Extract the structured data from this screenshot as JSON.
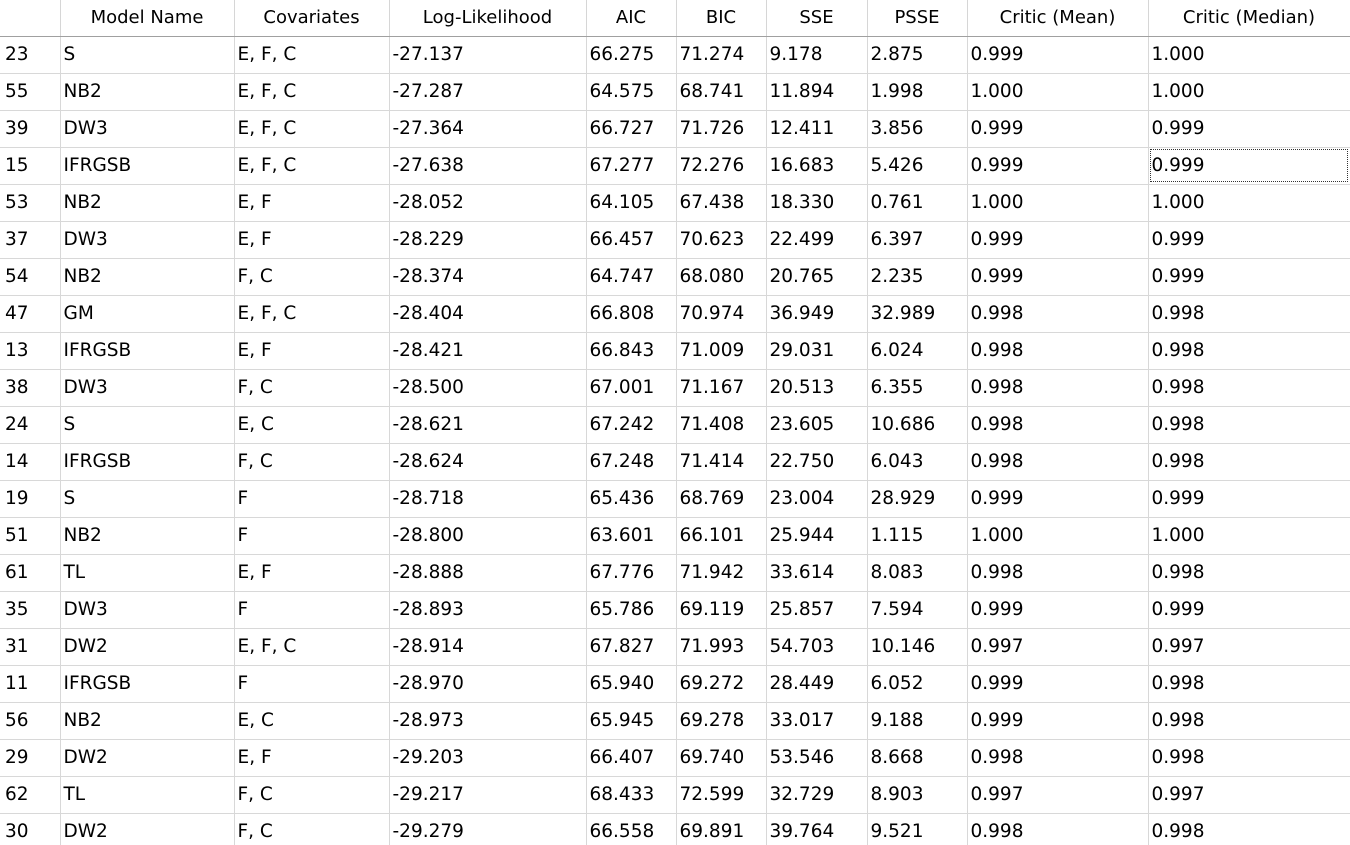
{
  "table": {
    "columns": [
      "",
      "Model Name",
      "Covariates",
      "Log-Likelihood",
      "AIC",
      "BIC",
      "SSE",
      "PSSE",
      "Critic (Mean)",
      "Critic (Median)"
    ],
    "sort_indicator": "ˇ",
    "rows": [
      [
        "23",
        "S",
        "E, F, C",
        "-27.137",
        "66.275",
        "71.274",
        "9.178",
        "2.875",
        "0.999",
        "1.000"
      ],
      [
        "55",
        "NB2",
        "E, F, C",
        "-27.287",
        "64.575",
        "68.741",
        "11.894",
        "1.998",
        "1.000",
        "1.000"
      ],
      [
        "39",
        "DW3",
        "E, F, C",
        "-27.364",
        "66.727",
        "71.726",
        "12.411",
        "3.856",
        "0.999",
        "0.999"
      ],
      [
        "15",
        "IFRGSB",
        "E, F, C",
        "-27.638",
        "67.277",
        "72.276",
        "16.683",
        "5.426",
        "0.999",
        "0.999"
      ],
      [
        "53",
        "NB2",
        "E, F",
        "-28.052",
        "64.105",
        "67.438",
        "18.330",
        "0.761",
        "1.000",
        "1.000"
      ],
      [
        "37",
        "DW3",
        "E, F",
        "-28.229",
        "66.457",
        "70.623",
        "22.499",
        "6.397",
        "0.999",
        "0.999"
      ],
      [
        "54",
        "NB2",
        "F, C",
        "-28.374",
        "64.747",
        "68.080",
        "20.765",
        "2.235",
        "0.999",
        "0.999"
      ],
      [
        "47",
        "GM",
        "E, F, C",
        "-28.404",
        "66.808",
        "70.974",
        "36.949",
        "32.989",
        "0.998",
        "0.998"
      ],
      [
        "13",
        "IFRGSB",
        "E, F",
        "-28.421",
        "66.843",
        "71.009",
        "29.031",
        "6.024",
        "0.998",
        "0.998"
      ],
      [
        "38",
        "DW3",
        "F, C",
        "-28.500",
        "67.001",
        "71.167",
        "20.513",
        "6.355",
        "0.998",
        "0.998"
      ],
      [
        "24",
        "S",
        "E, C",
        "-28.621",
        "67.242",
        "71.408",
        "23.605",
        "10.686",
        "0.998",
        "0.998"
      ],
      [
        "14",
        "IFRGSB",
        "F, C",
        "-28.624",
        "67.248",
        "71.414",
        "22.750",
        "6.043",
        "0.998",
        "0.998"
      ],
      [
        "19",
        "S",
        "F",
        "-28.718",
        "65.436",
        "68.769",
        "23.004",
        "28.929",
        "0.999",
        "0.999"
      ],
      [
        "51",
        "NB2",
        "F",
        "-28.800",
        "63.601",
        "66.101",
        "25.944",
        "1.115",
        "1.000",
        "1.000"
      ],
      [
        "61",
        "TL",
        "E, F",
        "-28.888",
        "67.776",
        "71.942",
        "33.614",
        "8.083",
        "0.998",
        "0.998"
      ],
      [
        "35",
        "DW3",
        "F",
        "-28.893",
        "65.786",
        "69.119",
        "25.857",
        "7.594",
        "0.999",
        "0.999"
      ],
      [
        "31",
        "DW2",
        "E, F, C",
        "-28.914",
        "67.827",
        "71.993",
        "54.703",
        "10.146",
        "0.997",
        "0.997"
      ],
      [
        "11",
        "IFRGSB",
        "F",
        "-28.970",
        "65.940",
        "69.272",
        "28.449",
        "6.052",
        "0.999",
        "0.998"
      ],
      [
        "56",
        "NB2",
        "E, C",
        "-28.973",
        "65.945",
        "69.278",
        "33.017",
        "9.188",
        "0.999",
        "0.998"
      ],
      [
        "29",
        "DW2",
        "E, F",
        "-29.203",
        "66.407",
        "69.740",
        "53.546",
        "8.668",
        "0.998",
        "0.998"
      ],
      [
        "62",
        "TL",
        "F, C",
        "-29.217",
        "68.433",
        "72.599",
        "32.729",
        "8.903",
        "0.997",
        "0.997"
      ],
      [
        "30",
        "DW2",
        "F, C",
        "-29.279",
        "66.558",
        "69.891",
        "39.764",
        "9.521",
        "0.998",
        "0.998"
      ]
    ]
  }
}
